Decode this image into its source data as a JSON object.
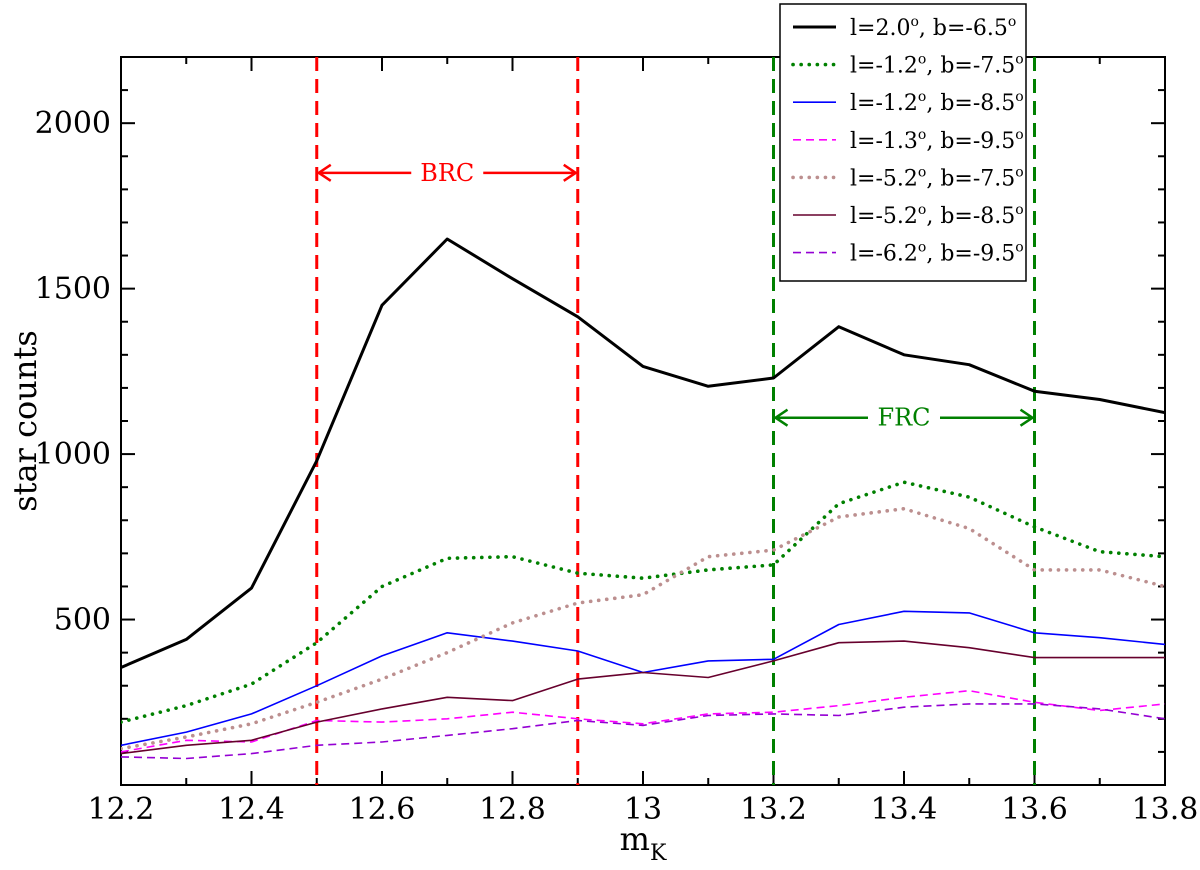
{
  "chart_data": {
    "type": "line",
    "title": "",
    "xlabel": "m",
    "xlabel_sub": "K",
    "ylabel": "star counts",
    "xlim": [
      12.2,
      13.8
    ],
    "ylim": [
      0,
      2200
    ],
    "x_ticks": [
      12.2,
      12.4,
      12.6,
      12.8,
      13.0,
      13.2,
      13.4,
      13.6,
      13.8
    ],
    "x_tick_labels": [
      "12.2",
      "12.4",
      "12.6",
      "12.8",
      "13",
      "13.2",
      "13.4",
      "13.6",
      "13.8"
    ],
    "y_ticks": [
      500,
      1000,
      1500,
      2000
    ],
    "y_tick_labels": [
      "500",
      "1000",
      "1500",
      "2000"
    ],
    "x": [
      12.2,
      12.3,
      12.4,
      12.5,
      12.6,
      12.7,
      12.8,
      12.9,
      13.0,
      13.1,
      13.2,
      13.3,
      13.4,
      13.5,
      13.6,
      13.7,
      13.8
    ],
    "legend_position": "top-right",
    "series": [
      {
        "name": "l=2.0°, b=-6.5°",
        "label_l": "l=2.0",
        "label_b": ", b=-6.5",
        "label_sup": "o",
        "color": "#000000",
        "dash": "solid",
        "width": "thick",
        "values": [
          355,
          440,
          595,
          980,
          1450,
          1650,
          1530,
          1415,
          1265,
          1205,
          1230,
          1385,
          1300,
          1270,
          1190,
          1165,
          1125
        ]
      },
      {
        "name": "l=-1.2°, b=-7.5°",
        "label_l": "l=-1.2",
        "label_b": ", b=-7.5",
        "label_sup": "o",
        "color": "#008000",
        "dash": "dotted",
        "width": "thick",
        "values": [
          190,
          240,
          305,
          430,
          600,
          685,
          690,
          640,
          625,
          650,
          665,
          850,
          915,
          870,
          780,
          705,
          690
        ]
      },
      {
        "name": "l=-1.2°, b=-8.5°",
        "label_l": "l=-1.2",
        "label_b": ", b=-8.5",
        "label_sup": "o",
        "color": "#0000ff",
        "dash": "solid",
        "width": "thin",
        "values": [
          120,
          160,
          215,
          300,
          390,
          460,
          435,
          405,
          340,
          375,
          380,
          485,
          525,
          520,
          460,
          445,
          425
        ]
      },
      {
        "name": "l=-1.3°, b=-9.5°",
        "label_l": "l=-1.3",
        "label_b": ", b=-9.5",
        "label_sup": "o",
        "color": "#ff00ff",
        "dash": "dashed",
        "width": "thin",
        "values": [
          100,
          135,
          130,
          195,
          190,
          200,
          220,
          200,
          185,
          215,
          220,
          240,
          265,
          285,
          250,
          225,
          245
        ]
      },
      {
        "name": "l=-5.2°, b=-7.5°",
        "label_l": "l=-5.2",
        "label_b": ", b=-7.5",
        "label_sup": "o",
        "color": "#bc8f8f",
        "dash": "dotted",
        "width": "thick",
        "values": [
          110,
          145,
          185,
          250,
          320,
          400,
          490,
          550,
          575,
          690,
          710,
          810,
          835,
          775,
          650,
          650,
          600
        ]
      },
      {
        "name": "l=-5.2°, b=-8.5°",
        "label_l": "l=-5.2",
        "label_b": ", b=-8.5",
        "label_sup": "o",
        "color": "#67002d",
        "dash": "solid",
        "width": "thin",
        "values": [
          95,
          120,
          135,
          190,
          230,
          265,
          255,
          320,
          340,
          325,
          375,
          430,
          435,
          415,
          385,
          385,
          385
        ]
      },
      {
        "name": "l=-6.2°, b=-9.5°",
        "label_l": "l=-6.2",
        "label_b": ", b=-9.5",
        "label_sup": "o",
        "color": "#9400d3",
        "dash": "dashed",
        "width": "thin",
        "values": [
          85,
          80,
          95,
          120,
          130,
          150,
          170,
          195,
          180,
          210,
          215,
          210,
          235,
          245,
          245,
          230,
          200
        ]
      }
    ],
    "annotations": [
      {
        "label": "BRC",
        "color": "#ff0000",
        "x_start": 12.5,
        "x_end": 12.9,
        "y": 1850
      },
      {
        "label": "FRC",
        "color": "#008000",
        "x_start": 13.2,
        "x_end": 13.6,
        "y": 1110
      }
    ]
  }
}
